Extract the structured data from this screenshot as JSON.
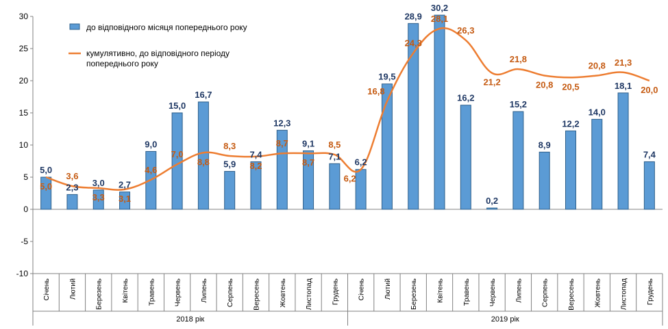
{
  "chart_data": {
    "type": "bar",
    "title": "",
    "xlabel": "",
    "ylabel": "",
    "ylim": [
      -10,
      30
    ],
    "yticks": [
      30,
      25,
      20,
      15,
      10,
      5,
      0,
      -5,
      -10
    ],
    "categories": [
      "Січень",
      "Лютий",
      "Березень",
      "Квітень",
      "Травень",
      "Червень",
      "Липень",
      "Серпень",
      "Вересень",
      "Жовтень",
      "Листопад",
      "Грудень",
      "Січень",
      "Лютий",
      "Березень",
      "Квітень",
      "Травень",
      "Червень",
      "Липень",
      "Серпень",
      "Вересень",
      "Жовтень",
      "Листопад",
      "Грудень"
    ],
    "groups": [
      {
        "label": "2018 рік",
        "count": 12
      },
      {
        "label": "2019 рік",
        "count": 12
      }
    ],
    "series": [
      {
        "name": "до відповідного  місяця попереднього року",
        "type": "bar",
        "color": "#5b9bd5",
        "values": [
          5.0,
          2.3,
          3.0,
          2.7,
          9.0,
          15.0,
          16.7,
          5.9,
          7.4,
          12.3,
          9.1,
          7.1,
          6.2,
          19.5,
          28.9,
          30.2,
          16.2,
          0.2,
          15.2,
          8.9,
          12.2,
          14.0,
          18.1,
          7.4
        ],
        "labels": [
          "5,0",
          "2,3",
          "3,0",
          "2,7",
          "9,0",
          "15,0",
          "16,7",
          "5,9",
          "7,4",
          "12,3",
          "9,1",
          "7,1",
          "6,2",
          "19,5",
          "28,9",
          "30,2",
          "16,2",
          "0,2",
          "15,2",
          "8,9",
          "12,2",
          "14,0",
          "18,1",
          "7,4"
        ]
      },
      {
        "name": "кумулятивно, до відповідного  періоду попереднього року",
        "legend_lines": [
          "кумулятивно, до відповідного  періоду",
          "попереднього року"
        ],
        "type": "line",
        "color": "#ed7d31",
        "values": [
          5.0,
          3.6,
          3.3,
          3.1,
          4.6,
          7.0,
          8.8,
          8.3,
          8.2,
          8.7,
          8.7,
          8.5,
          6.2,
          16.8,
          24.3,
          28.1,
          26.3,
          21.2,
          21.8,
          20.8,
          20.5,
          20.8,
          21.3,
          20.0
        ],
        "labels": [
          "5,0",
          "3,6",
          "3,3",
          "3,1",
          "4,6",
          "7,0",
          "8,8",
          "8,3",
          "8,2",
          "8,7",
          "8,7",
          "8,5",
          "6,2",
          "16,8",
          "24,3",
          "28,1",
          "26,3",
          "21,2",
          "21,8",
          "20,8",
          "20,5",
          "20,8",
          "21,3",
          "20,0"
        ]
      }
    ],
    "legend_position": "top-left",
    "grid": false
  }
}
